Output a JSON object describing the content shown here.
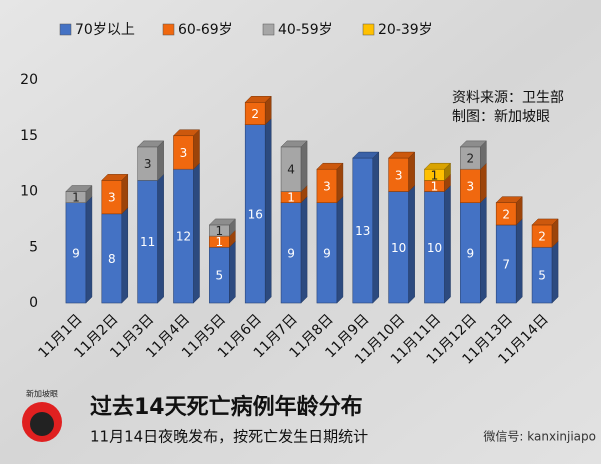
{
  "chart_data": {
    "type": "bar",
    "stacked": true,
    "title": "过去14天死亡病例年龄分布",
    "subtitle": "11月14日夜晚发布，按死亡发生日期统计",
    "source": "资料来源：卫生部",
    "credit": "制图：新加坡眼",
    "logo_text": "新加坡眼",
    "watermark": "微信号: kanxinjiapo",
    "categories": [
      "11月1日",
      "11月2日",
      "11月3日",
      "11月4日",
      "11月5日",
      "11月6日",
      "11月7日",
      "11月8日",
      "11月9日",
      "11月10日",
      "11月11日",
      "11月12日",
      "11月13日",
      "11月14日"
    ],
    "series": [
      {
        "name": "70岁以上",
        "color": "#4472c4",
        "values": [
          9,
          8,
          11,
          12,
          5,
          16,
          9,
          9,
          13,
          10,
          10,
          9,
          7,
          5
        ]
      },
      {
        "name": "60-69岁",
        "color": "#f0680f",
        "values": [
          null,
          3,
          null,
          3,
          1,
          2,
          1,
          3,
          null,
          3,
          1,
          3,
          2,
          2
        ]
      },
      {
        "name": "40-59岁",
        "color": "#a6a6a6",
        "values": [
          1,
          null,
          3,
          null,
          1,
          null,
          4,
          null,
          null,
          null,
          null,
          2,
          null,
          null
        ]
      },
      {
        "name": "20-39岁",
        "color": "#ffc000",
        "values": [
          null,
          null,
          null,
          null,
          null,
          null,
          null,
          null,
          null,
          null,
          1,
          null,
          null,
          null
        ]
      }
    ],
    "ylim": [
      0,
      20
    ],
    "yticks": [
      0,
      5,
      10,
      15,
      20
    ],
    "grid": false
  }
}
